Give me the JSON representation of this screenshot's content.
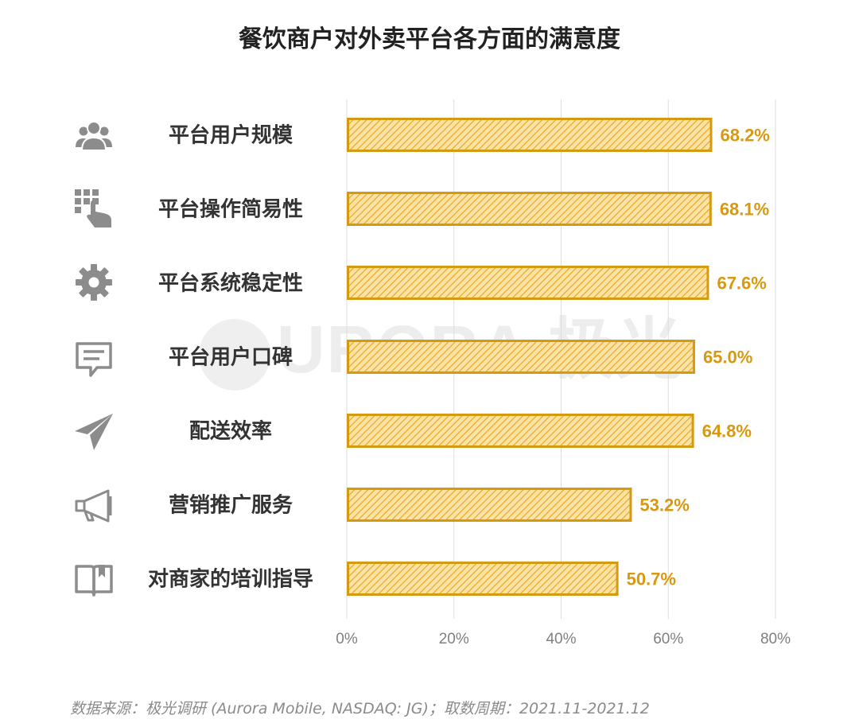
{
  "title": "餐饮商户对外卖平台各方面的满意度",
  "watermark": "URORA 极光",
  "source": "数据来源：极光调研 (Aurora Mobile, NASDAQ: JG)；取数周期：2021.11-2021.12",
  "colors": {
    "bar_fill": "#fbe3a6",
    "bar_stroke": "#d49a12",
    "hatch": "#e8a317",
    "label": "#d8980f",
    "grid": "#dddddd",
    "tick": "#7f7f7f",
    "icon": "#8c8c8c",
    "category": "#333333"
  },
  "chart_data": {
    "type": "bar",
    "orientation": "horizontal",
    "categories": [
      "平台用户规模",
      "平台操作简易性",
      "平台系统稳定性",
      "平台用户口碑",
      "配送效率",
      "营销推广服务",
      "对商家的培训指导"
    ],
    "values": [
      68.2,
      68.1,
      67.6,
      65.0,
      64.8,
      53.2,
      50.7
    ],
    "value_labels": [
      "68.2%",
      "68.1%",
      "67.6%",
      "65.0%",
      "64.8%",
      "53.2%",
      "50.7%"
    ],
    "icons": [
      "users-icon",
      "keypad-tap-icon",
      "gear-icon",
      "chat-bubble-icon",
      "paper-plane-icon",
      "megaphone-icon",
      "open-book-icon"
    ],
    "xlim": [
      0,
      80
    ],
    "xticks": [
      0,
      20,
      40,
      60,
      80
    ],
    "xtick_labels": [
      "0%",
      "20%",
      "40%",
      "60%",
      "80%"
    ],
    "grid": true,
    "title": "餐饮商户对外卖平台各方面的满意度"
  }
}
